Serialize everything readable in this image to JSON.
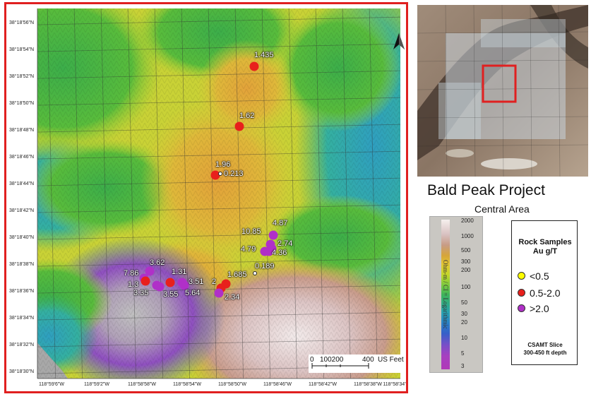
{
  "map": {
    "latitude_labels": [
      "38°18'56\"N",
      "38°18'54\"N",
      "38°18'52\"N",
      "38°18'50\"N",
      "38°18'48\"N",
      "38°18'46\"N",
      "38°18'44\"N",
      "38°18'42\"N",
      "38°18'40\"N",
      "38°18'38\"N",
      "38°18'36\"N",
      "38°18'34\"N",
      "38°18'32\"N",
      "38°18'30\"N"
    ],
    "longitude_labels": [
      "118°59'6\"W",
      "118°59'2\"W",
      "118°58'58\"W",
      "118°58'54\"W",
      "118°58'50\"W",
      "118°58'46\"W",
      "118°58'42\"W",
      "118°58'38\"W",
      "118°58'34\""
    ],
    "samples": [
      {
        "label": "1.435",
        "grade": "0.5-2.0"
      },
      {
        "label": "1.62",
        "grade": "0.5-2.0"
      },
      {
        "label": "1.96",
        "grade": "0.5-2.0"
      },
      {
        "label": "0.213",
        "grade": "<0.5"
      },
      {
        "label": "10.85",
        "grade": ">2.0"
      },
      {
        "label": "4.87",
        "grade": ">2.0"
      },
      {
        "label": "4.79",
        "grade": ">2.0"
      },
      {
        "label": "2.74",
        "grade": ">2.0"
      },
      {
        "label": "4.36",
        "grade": ">2.0"
      },
      {
        "label": "0.189",
        "grade": "<0.5"
      },
      {
        "label": "3.62",
        "grade": ">2.0"
      },
      {
        "label": "7.86",
        "grade": ">2.0"
      },
      {
        "label": "1.3",
        "grade": "0.5-2.0"
      },
      {
        "label": "3.35",
        "grade": ">2.0"
      },
      {
        "label": "1.31",
        "grade": "0.5-2.0"
      },
      {
        "label": "3.55",
        "grade": ">2.0"
      },
      {
        "label": "3.51",
        "grade": ">2.0"
      },
      {
        "label": "5.64",
        "grade": ">2.0"
      },
      {
        "label": "1.685",
        "grade": "0.5-2.0"
      },
      {
        "label": "2",
        "grade": "0.5-2.0"
      },
      {
        "label": "2.34",
        "grade": ">2.0"
      }
    ],
    "scale_bar": {
      "ticks": [
        "0",
        "100200",
        "400"
      ],
      "unit": "US Feet"
    },
    "north_arrow_icon": "north-arrow-icon"
  },
  "title": {
    "main": "Bald Peak Project",
    "sub": "Central Area"
  },
  "color_scale": {
    "axis_label": "Ohm-m / CI = Logarithmic",
    "ticks": [
      "2000",
      "1000",
      "500",
      "300",
      "200",
      "100",
      "50",
      "30",
      "20",
      "10",
      "5",
      "3"
    ]
  },
  "legend": {
    "title": "Rock Samples\nAu g/T",
    "items": [
      {
        "label": "<0.5",
        "color": "#ffff00"
      },
      {
        "label": "0.5-2.0",
        "color": "#e8201c"
      },
      {
        "label": ">2.0",
        "color": "#b030c8"
      }
    ],
    "footer": "CSAMT Slice\n300-450 ft depth"
  },
  "colors": {
    "frame": "#e02020",
    "inset_highlight": "#e02020"
  }
}
